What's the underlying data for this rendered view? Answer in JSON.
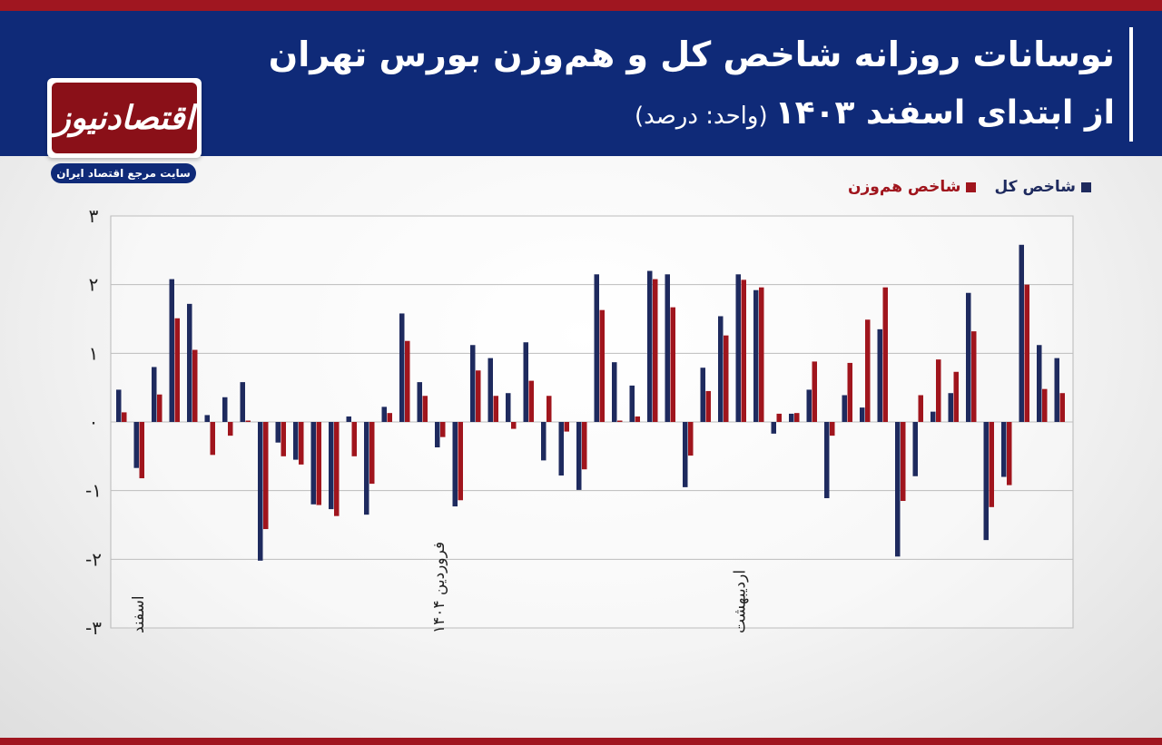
{
  "header": {
    "title_line1": "نوسانات روزانه شاخص کل و هم‌وزن بورس تهران",
    "title_line2": "از ابتدای اسفند ۱۴۰۳",
    "unit": "(واحد: درصد)"
  },
  "logo": {
    "name": "اقتصادنیوز",
    "subtitle": "سایت مرجع اقتصاد ایران"
  },
  "colors": {
    "header_bg": "#0f2a78",
    "accent_red": "#a01620",
    "series_total": "#1e2a5e",
    "series_equal": "#a0151d"
  },
  "chart_data": {
    "type": "bar",
    "ylim": [
      -3,
      3
    ],
    "yticks": [
      "۳",
      "۲",
      "۱",
      "۰",
      "-۱",
      "-۲",
      "-۳"
    ],
    "grid": true,
    "legend_position": "top-right",
    "month_labels": [
      {
        "label": "اسفند",
        "index": 0
      },
      {
        "label": "فروردین ۱۴۰۴",
        "index": 18
      },
      {
        "label": "اردیبهشت",
        "index": 35
      }
    ],
    "series": [
      {
        "name": "شاخص کل",
        "values": [
          0.47,
          -0.67,
          0.8,
          2.08,
          1.72,
          0.1,
          0.36,
          0.58,
          -2.02,
          -0.3,
          -0.55,
          -1.2,
          -1.27,
          0.08,
          -1.35,
          0.22,
          1.58,
          0.58,
          -0.37,
          -1.23,
          1.12,
          0.93,
          0.42,
          1.16,
          -0.56,
          -0.78,
          -0.99,
          2.15,
          0.87,
          0.53,
          2.2,
          2.15,
          -0.95,
          0.79,
          1.54,
          2.15,
          1.92,
          -0.17,
          0.12,
          0.47,
          -1.11,
          0.39,
          0.21,
          1.35,
          -1.96,
          -0.79,
          0.15,
          0.42,
          1.88,
          -1.72,
          -0.8,
          2.58,
          1.12,
          0.93
        ]
      },
      {
        "name": "شاخص هم‌وزن",
        "values": [
          0.14,
          -0.82,
          0.4,
          1.51,
          1.05,
          -0.48,
          -0.2,
          0.02,
          -1.56,
          -0.5,
          -0.62,
          -1.21,
          -1.37,
          -0.5,
          -0.9,
          0.13,
          1.18,
          0.38,
          -0.22,
          -1.14,
          0.75,
          0.38,
          -0.1,
          0.6,
          0.38,
          -0.14,
          -0.69,
          1.63,
          0.02,
          0.08,
          2.08,
          1.67,
          -0.49,
          0.45,
          1.26,
          2.07,
          1.96,
          0.12,
          0.13,
          0.88,
          -0.2,
          0.86,
          1.49,
          1.96,
          -1.15,
          0.39,
          0.91,
          0.73,
          1.32,
          -1.24,
          -0.92,
          2.0,
          0.48,
          0.42
        ]
      }
    ]
  }
}
